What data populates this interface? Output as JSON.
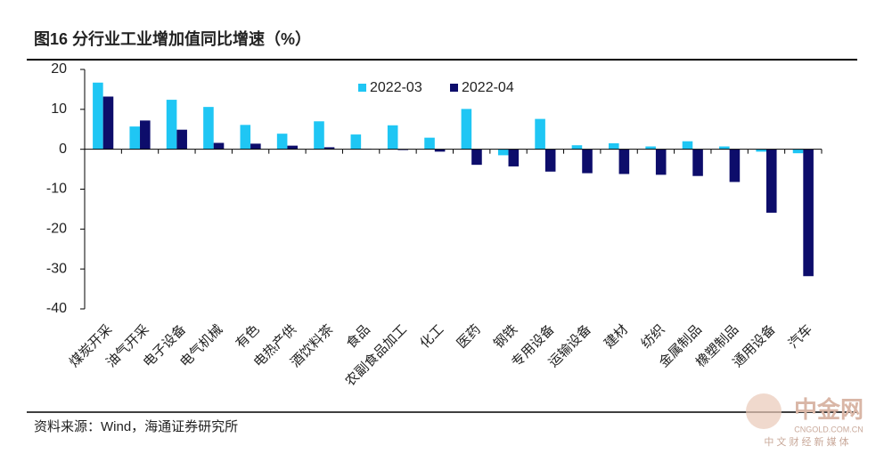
{
  "chart_data": {
    "type": "bar",
    "title": "图16 分行业工业增加值同比增速（%）",
    "categories": [
      "煤炭开采",
      "油气开采",
      "电子设备",
      "电气机械",
      "有色",
      "电热产供",
      "酒饮料茶",
      "食品",
      "农副食品加工",
      "化工",
      "医药",
      "钢铁",
      "专用设备",
      "运输设备",
      "建材",
      "纺织",
      "金属制品",
      "橡塑制品",
      "通用设备",
      "汽车"
    ],
    "series": [
      {
        "name": "2022-03",
        "color": "#1fc6f4",
        "values": [
          16.7,
          5.7,
          12.4,
          10.6,
          6.1,
          3.9,
          7.0,
          3.7,
          6.0,
          2.9,
          10.1,
          -1.5,
          7.6,
          1.0,
          1.5,
          0.7,
          2.0,
          0.7,
          -0.6,
          -1.0
        ]
      },
      {
        "name": "2022-04",
        "color": "#0d0d6b",
        "values": [
          13.2,
          7.2,
          4.9,
          1.6,
          1.4,
          0.9,
          0.5,
          0.1,
          -0.2,
          -0.6,
          -3.9,
          -4.3,
          -5.6,
          -6.0,
          -6.2,
          -6.4,
          -6.7,
          -8.2,
          -15.9,
          -31.8
        ]
      }
    ],
    "ylim": [
      -40,
      20
    ],
    "yticks": [
      -40,
      -30,
      -20,
      -10,
      0,
      10,
      20
    ],
    "source": "资料来源：Wind，海通证券研究所"
  },
  "watermark": {
    "name": "中金网",
    "site": "CNGOLD.COM.CN",
    "slogan": "中 文 财 经 新 媒 体"
  }
}
